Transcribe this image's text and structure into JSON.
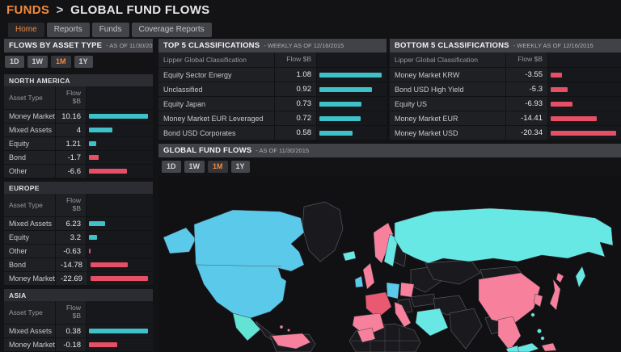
{
  "colors": {
    "accent": "#f28a3c",
    "flow_positive": "#3fc1c9",
    "flow_negative": "#e64f66",
    "map_cyan": "#5ac9ea",
    "map_cyan_bright": "#68e8e4",
    "map_teal": "#62e3d4",
    "map_pink": "#f7819c",
    "map_red": "#e95a72",
    "map_land": "#1a1a1e",
    "map_border": "#55565e"
  },
  "header": {
    "app": "FUNDS",
    "separator": ">",
    "title": "GLOBAL FUND FLOWS"
  },
  "tabs": [
    {
      "label": "Home",
      "active": true
    },
    {
      "label": "Reports",
      "active": false
    },
    {
      "label": "Funds",
      "active": false
    },
    {
      "label": "Coverage Reports",
      "active": false
    }
  ],
  "flows_panel": {
    "title": "FLOWS BY ASSET TYPE",
    "as_of": "- AS OF 11/30/2015",
    "ranges": [
      "1D",
      "1W",
      "1M",
      "1Y"
    ],
    "active_range": "1M",
    "columns": {
      "asset": "Asset Type",
      "flow_line1": "Flow",
      "flow_line2": "$B"
    },
    "sections": [
      {
        "name": "NORTH AMERICA",
        "rows": [
          {
            "label": "Money Market",
            "value": "10.16"
          },
          {
            "label": "Mixed Assets",
            "value": "4"
          },
          {
            "label": "Equity",
            "value": "1.21"
          },
          {
            "label": "Bond",
            "value": "-1.7"
          },
          {
            "label": "Other",
            "value": "-6.6"
          }
        ]
      },
      {
        "name": "EUROPE",
        "rows": [
          {
            "label": "Mixed Assets",
            "value": "6.23"
          },
          {
            "label": "Equity",
            "value": "3.2"
          },
          {
            "label": "Other",
            "value": "-0.63"
          },
          {
            "label": "Bond",
            "value": "-14.78"
          },
          {
            "label": "Money Market",
            "value": "-22.69"
          }
        ]
      },
      {
        "name": "ASIA",
        "rows": [
          {
            "label": "Mixed Assets",
            "value": "0.38"
          },
          {
            "label": "Money Market",
            "value": "-0.18"
          }
        ]
      }
    ]
  },
  "top5_panel": {
    "title": "TOP 5 CLASSIFICATIONS",
    "as_of": "- WEEKLY AS OF 12/16/2015",
    "columns": {
      "name": "Lipper Global Classification",
      "flow": "Flow $B"
    },
    "rows": [
      {
        "label": "Equity Sector Energy",
        "value": "1.08"
      },
      {
        "label": "Unclassified",
        "value": "0.92"
      },
      {
        "label": "Equity Japan",
        "value": "0.73"
      },
      {
        "label": "Money Market EUR Leveraged",
        "value": "0.72"
      },
      {
        "label": "Bond USD Corporates",
        "value": "0.58"
      }
    ]
  },
  "bottom5_panel": {
    "title": "BOTTOM 5 CLASSIFICATIONS",
    "as_of": "- WEEKLY AS OF 12/16/2015",
    "columns": {
      "name": "Lipper Global Classification",
      "flow": "Flow $B"
    },
    "rows": [
      {
        "label": "Money Market KRW",
        "value": "-3.55"
      },
      {
        "label": "Bond USD High Yield",
        "value": "-5.3"
      },
      {
        "label": "Equity US",
        "value": "-6.93"
      },
      {
        "label": "Money Market EUR",
        "value": "-14.41"
      },
      {
        "label": "Money Market USD",
        "value": "-20.34"
      }
    ]
  },
  "map_panel": {
    "title": "GLOBAL FUND FLOWS",
    "as_of": "- AS OF 11/30/2015",
    "ranges": [
      "1D",
      "1W",
      "1M",
      "1Y"
    ],
    "active_range": "1M",
    "country_colors": {
      "alaska": "map_cyan",
      "canada_usa": "map_cyan",
      "mexico": "map_teal",
      "iceland": "map_cyan_bright",
      "ireland": "map_cyan",
      "uk": "map_pink",
      "norway": "map_pink",
      "sweden": "map_cyan_bright",
      "germany": "map_cyan",
      "poland": "map_pink",
      "france": "map_red",
      "spain": "map_pink",
      "italy": "map_pink",
      "russia": "map_cyan_bright",
      "sakhalin": "map_cyan_bright",
      "saudi_arabia": "map_cyan_bright",
      "china": "map_pink",
      "korea": "map_pink",
      "japan": "map_pink",
      "taiwan": "map_cyan_bright",
      "vietnam_thailand": "map_pink",
      "malaysia": "map_cyan_bright",
      "philippines": "map_cyan_bright",
      "indonesia_west": "map_cyan_bright",
      "indonesia_east": "map_pink",
      "venezuela_colombia": "map_pink",
      "morocco": "map_pink",
      "caribbean": "map_pink"
    }
  }
}
